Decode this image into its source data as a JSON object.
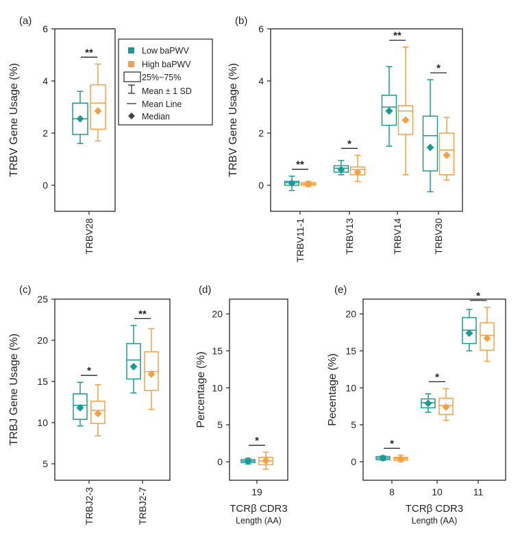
{
  "colors": {
    "low": "#1a9a96",
    "high": "#f5a043",
    "axis": "#222222"
  },
  "legend": {
    "low_label": "Low baPWV",
    "high_label": "High baPWV",
    "box_label": "25%~75%",
    "sd_label": "Mean ± 1 SD",
    "mean_label": "Mean Line",
    "median_label": "Median"
  },
  "chart_data": [
    {
      "panel": "(a)",
      "type": "box",
      "ylabel": "TRBV Gene Usage (%)",
      "xlabel_lines": [],
      "ylim": [
        -1,
        6
      ],
      "yticks": [
        0,
        2,
        4,
        6
      ],
      "rotate_x": true,
      "categories": [
        "TRBV28"
      ],
      "series": [
        {
          "name": "Low baPWV",
          "boxes": [
            {
              "lo": 1.6,
              "q1": 1.95,
              "mean": 2.55,
              "q3": 3.15,
              "hi": 3.6,
              "median": 2.55
            }
          ]
        },
        {
          "name": "High baPWV",
          "boxes": [
            {
              "lo": 1.7,
              "q1": 2.15,
              "mean": 3.15,
              "q3": 3.85,
              "hi": 4.65,
              "median": 2.85
            }
          ]
        }
      ],
      "significance": [
        "**"
      ]
    },
    {
      "panel": "(b)",
      "type": "box",
      "ylabel": "TRBV Gene Usage (%)",
      "xlabel_lines": [],
      "ylim": [
        -1,
        6
      ],
      "yticks": [
        0,
        2,
        4,
        6
      ],
      "rotate_x": true,
      "categories": [
        "TRBV11-1",
        "TRBV13",
        "TRBV14",
        "TRBV30"
      ],
      "series": [
        {
          "name": "Low baPWV",
          "boxes": [
            {
              "lo": -0.2,
              "q1": 0.0,
              "mean": 0.1,
              "q3": 0.15,
              "hi": 0.35,
              "median": 0.08
            },
            {
              "lo": 0.4,
              "q1": 0.5,
              "mean": 0.65,
              "q3": 0.75,
              "hi": 0.95,
              "median": 0.6
            },
            {
              "lo": 1.5,
              "q1": 2.3,
              "mean": 3.0,
              "q3": 3.45,
              "hi": 4.55,
              "median": 2.85
            },
            {
              "lo": -0.25,
              "q1": 0.55,
              "mean": 1.9,
              "q3": 2.65,
              "hi": 4.05,
              "median": 1.45
            }
          ]
        },
        {
          "name": "High baPWV",
          "boxes": [
            {
              "lo": -0.05,
              "q1": 0.0,
              "mean": 0.05,
              "q3": 0.1,
              "hi": 0.15,
              "median": 0.05
            },
            {
              "lo": 0.15,
              "q1": 0.4,
              "mean": 0.6,
              "q3": 0.7,
              "hi": 1.15,
              "median": 0.5
            },
            {
              "lo": 0.4,
              "q1": 1.95,
              "mean": 2.85,
              "q3": 3.05,
              "hi": 5.3,
              "median": 2.5
            },
            {
              "lo": 0.2,
              "q1": 0.4,
              "mean": 1.35,
              "q3": 2.0,
              "hi": 2.6,
              "median": 1.15
            }
          ]
        }
      ],
      "significance": [
        "**",
        "*",
        "**",
        "*"
      ]
    },
    {
      "panel": "(c)",
      "type": "box",
      "ylabel": "TRBJ Gene Usage (%)",
      "xlabel_lines": [],
      "ylim": [
        3,
        25
      ],
      "yticks": [
        5,
        10,
        15,
        20,
        25
      ],
      "rotate_x": true,
      "categories": [
        "TRBJ2-3",
        "TRBJ2-7"
      ],
      "series": [
        {
          "name": "Low baPWV",
          "boxes": [
            {
              "lo": 9.6,
              "q1": 10.4,
              "mean": 12.1,
              "q3": 13.5,
              "hi": 14.9,
              "median": 11.8
            },
            {
              "lo": 13.6,
              "q1": 15.3,
              "mean": 17.6,
              "q3": 19.6,
              "hi": 21.8,
              "median": 16.8
            }
          ]
        },
        {
          "name": "High baPWV",
          "boxes": [
            {
              "lo": 8.4,
              "q1": 9.9,
              "mean": 11.5,
              "q3": 12.6,
              "hi": 14.6,
              "median": 11.1
            },
            {
              "lo": 11.6,
              "q1": 13.9,
              "mean": 16.2,
              "q3": 18.6,
              "hi": 21.4,
              "median": 15.9
            }
          ]
        }
      ],
      "significance": [
        "*",
        "**"
      ]
    },
    {
      "panel": "(d)",
      "type": "box",
      "ylabel": "Percentage (%)",
      "xlabel_lines": [
        "TCRβ CDR3",
        "Length (AA)"
      ],
      "ylim": [
        -2.5,
        22
      ],
      "yticks": [
        0,
        5,
        10,
        15,
        20
      ],
      "rotate_x": false,
      "categories": [
        "19"
      ],
      "series": [
        {
          "name": "Low baPWV",
          "boxes": [
            {
              "lo": -0.3,
              "q1": -0.1,
              "mean": 0.1,
              "q3": 0.3,
              "hi": 0.5,
              "median": 0.1
            }
          ]
        },
        {
          "name": "High baPWV",
          "boxes": [
            {
              "lo": -1.0,
              "q1": -0.4,
              "mean": 0.1,
              "q3": 0.6,
              "hi": 1.3,
              "median": 0.15
            }
          ]
        }
      ],
      "significance": [
        "*"
      ]
    },
    {
      "panel": "(e)",
      "type": "box",
      "ylabel": "Pecentage (%)",
      "xlabel_lines": [
        "TCRβ CDR3",
        "Length (AA)"
      ],
      "ylim": [
        -2.5,
        22
      ],
      "yticks": [
        0,
        5,
        10,
        15,
        20
      ],
      "rotate_x": false,
      "categories": [
        "8",
        "10",
        "11"
      ],
      "series": [
        {
          "name": "Low baPWV",
          "boxes": [
            {
              "lo": 0.2,
              "q1": 0.3,
              "mean": 0.5,
              "q3": 0.7,
              "hi": 0.8,
              "median": 0.5
            },
            {
              "lo": 6.7,
              "q1": 7.3,
              "mean": 8.0,
              "q3": 8.5,
              "hi": 9.2,
              "median": 7.9
            },
            {
              "lo": 15.0,
              "q1": 16.0,
              "mean": 17.8,
              "q3": 19.5,
              "hi": 20.6,
              "median": 17.4
            }
          ]
        },
        {
          "name": "High baPWV",
          "boxes": [
            {
              "lo": 0.0,
              "q1": 0.2,
              "mean": 0.45,
              "q3": 0.6,
              "hi": 0.9,
              "median": 0.4
            },
            {
              "lo": 5.6,
              "q1": 6.4,
              "mean": 7.6,
              "q3": 8.6,
              "hi": 9.9,
              "median": 7.4
            },
            {
              "lo": 13.6,
              "q1": 15.1,
              "mean": 17.1,
              "q3": 18.8,
              "hi": 20.9,
              "median": 16.7
            }
          ]
        }
      ],
      "significance": [
        "*",
        "*",
        "*"
      ]
    }
  ]
}
